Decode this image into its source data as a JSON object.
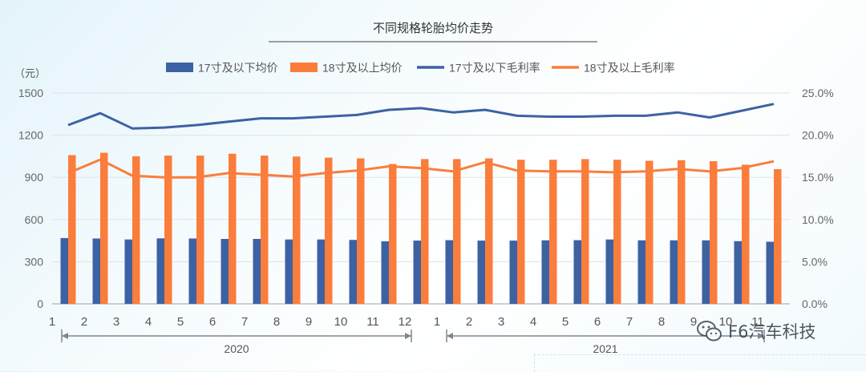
{
  "chart_data": {
    "type": "bar",
    "title": "不同规格轮胎均价走势",
    "y_left_unit": "（元）",
    "ylim_left": [
      0,
      1500
    ],
    "yticks_left": [
      "0",
      "300",
      "600",
      "900",
      "1200",
      "1500"
    ],
    "ylim_right": [
      0,
      25
    ],
    "yticks_right": [
      "0.0%",
      "5.0%",
      "10.0%",
      "15.0%",
      "20.0%",
      "25.0%"
    ],
    "categories": [
      "1",
      "2",
      "3",
      "4",
      "5",
      "6",
      "7",
      "8",
      "9",
      "10",
      "11",
      "12",
      "1",
      "2",
      "3",
      "4",
      "5",
      "6",
      "7",
      "8",
      "9",
      "10",
      "11"
    ],
    "year_groups": [
      {
        "label": "2020",
        "from": 0,
        "to": 11
      },
      {
        "label": "2021",
        "from": 12,
        "to": 22
      }
    ],
    "legend_position": "top",
    "grid": "horizontal",
    "series": [
      {
        "name": "17寸及以下均价",
        "type": "bar",
        "axis": "left",
        "color": "#3d62a3",
        "values": [
          468,
          465,
          458,
          466,
          465,
          462,
          462,
          458,
          458,
          455,
          445,
          450,
          453,
          450,
          450,
          452,
          453,
          458,
          452,
          452,
          452,
          446,
          442
        ]
      },
      {
        "name": "18寸及以上均价",
        "type": "bar",
        "axis": "left",
        "color": "#fb7d3c",
        "values": [
          1058,
          1075,
          1050,
          1055,
          1055,
          1068,
          1055,
          1048,
          1040,
          1035,
          995,
          1030,
          1030,
          1035,
          1025,
          1025,
          1030,
          1025,
          1018,
          1022,
          1015,
          990,
          958
        ]
      },
      {
        "name": "17寸及以下毛利率",
        "type": "line",
        "axis": "right",
        "color": "#3d62a3",
        "values": [
          21.2,
          22.6,
          20.8,
          20.9,
          21.2,
          21.6,
          22.0,
          22.0,
          22.2,
          22.4,
          23.0,
          23.2,
          22.7,
          23.0,
          22.3,
          22.2,
          22.2,
          22.3,
          22.3,
          22.7,
          22.1,
          22.9,
          23.7
        ]
      },
      {
        "name": "18寸及以上毛利率",
        "type": "line",
        "axis": "right",
        "color": "#fb7d3c",
        "values": [
          15.5,
          17.1,
          15.2,
          15.0,
          15.0,
          15.5,
          15.3,
          15.1,
          15.5,
          15.8,
          16.3,
          16.1,
          15.7,
          16.8,
          15.8,
          15.7,
          15.7,
          15.6,
          15.7,
          16.0,
          15.7,
          16.1,
          16.9
        ]
      }
    ]
  },
  "watermark": {
    "text": "F6汽车科技",
    "icon": "wechat-icon"
  }
}
